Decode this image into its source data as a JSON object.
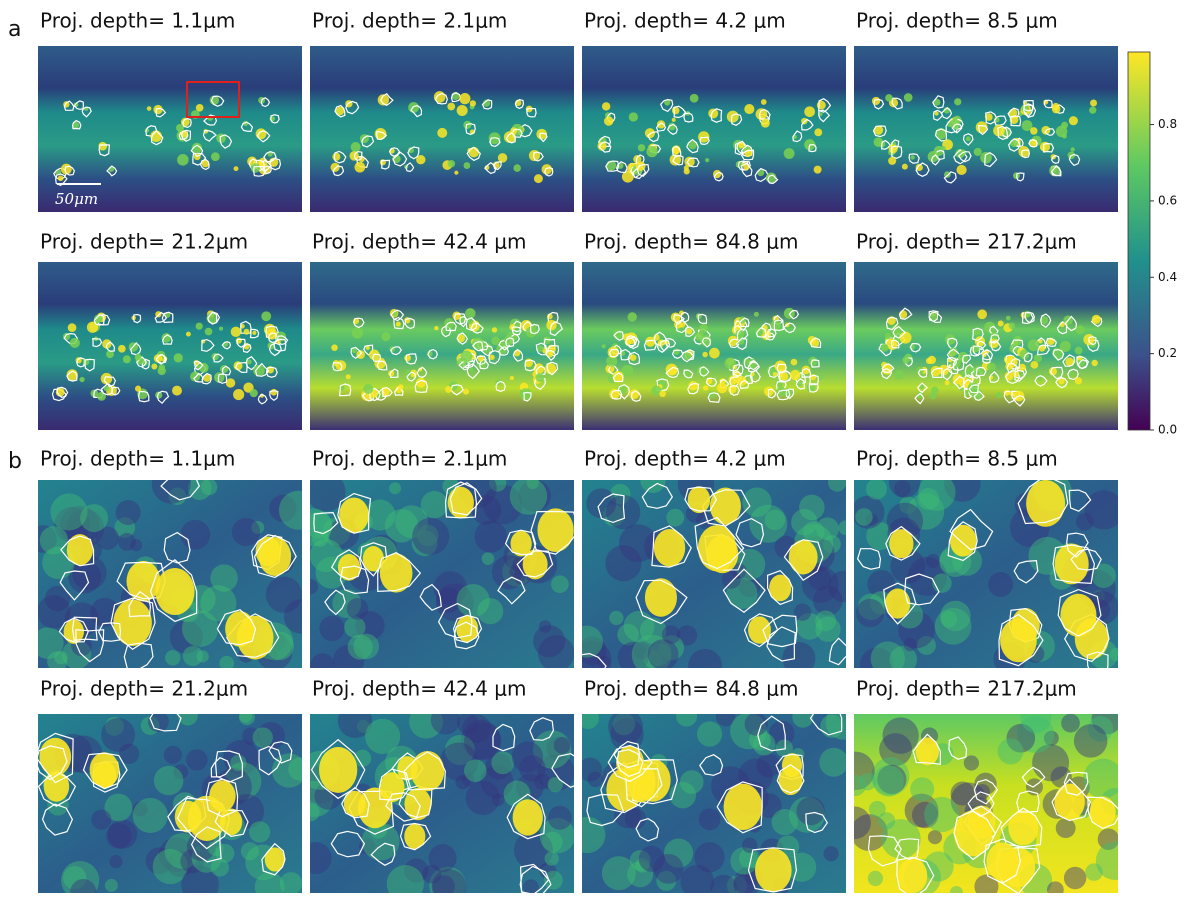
{
  "panel_a": {
    "label": "a",
    "titles": [
      "Proj. depth= 1.1μm",
      "Proj. depth= 2.1μm",
      "Proj. depth= 4.2 μm",
      "Proj. depth= 8.5 μm",
      "Proj. depth= 21.2μm",
      "Proj. depth= 42.4 μm",
      "Proj. depth= 84.8 μm",
      "Proj. depth= 217.2μm"
    ],
    "scale_bar": "50μm"
  },
  "panel_b": {
    "label": "b",
    "titles": [
      "Proj. depth= 1.1μm",
      "Proj. depth= 2.1μm",
      "Proj. depth= 4.2 μm",
      "Proj. depth= 8.5 μm",
      "Proj. depth= 21.2μm",
      "Proj. depth= 42.4 μm",
      "Proj. depth= 84.8 μm",
      "Proj. depth= 217.2μm"
    ]
  },
  "colorbar": {
    "lim": [
      0,
      0.99
    ],
    "ticks": [
      {
        "value": 0,
        "label": "0.0"
      },
      0.2,
      0.4,
      0.6,
      0.8
    ]
  }
}
